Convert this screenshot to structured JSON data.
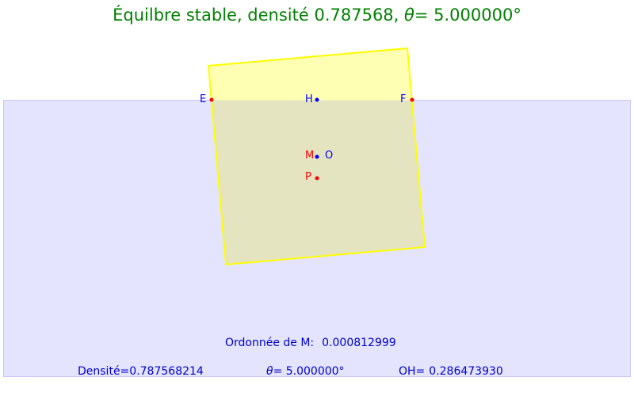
{
  "title": {
    "prefix": "Équilbre stable, densité 0.787568, ",
    "theta_symbol": "θ",
    "suffix": "= 5.000000°"
  },
  "colors": {
    "title": "#008000",
    "water_fill": "#e4e4ff",
    "water_stroke": "#c8c8f8",
    "block_stroke": "#ffff00",
    "block_fill_air": "#ffffb4",
    "block_fill_water": "#e4e4c0",
    "point_blue": "#0000ff",
    "point_red": "#ff0000",
    "info_text": "#0000cc"
  },
  "points": {
    "E": "E",
    "H": "H",
    "F": "F",
    "M": "M",
    "O": "O",
    "P": "P"
  },
  "info": {
    "ordonnee_label": "Ordonnée de M:",
    "ordonnee_value": "0.000812999",
    "densite_label": "Densité=",
    "densite_value": "0.787568214",
    "theta_symbol": "θ",
    "theta_value": "= 5.000000°",
    "oh_label": "OH=",
    "oh_value": "0.286473930"
  }
}
